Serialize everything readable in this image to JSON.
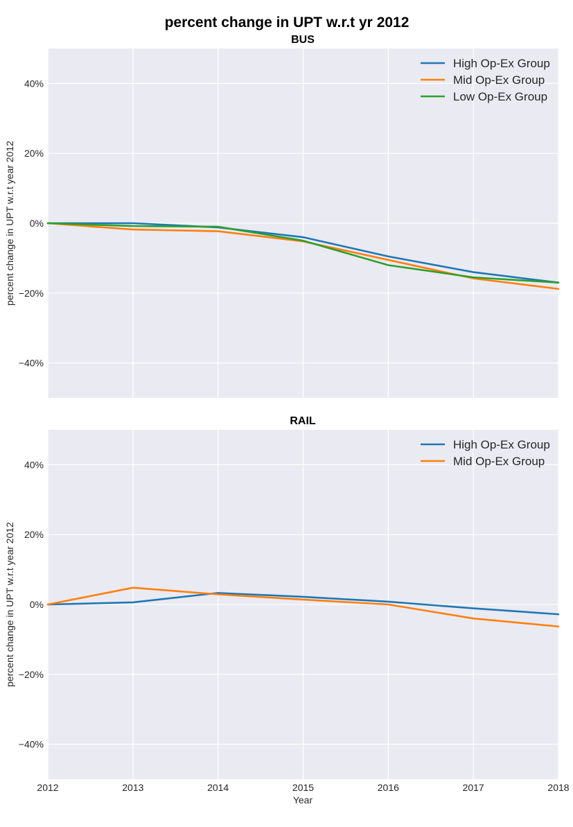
{
  "suptitle": "percent change in UPT w.r.t yr 2012",
  "chart_data": [
    {
      "type": "line",
      "title": "BUS",
      "xlabel": "",
      "ylabel": "percent change in UPT w.r.t year 2012",
      "x": [
        2012,
        2013,
        2014,
        2015,
        2016,
        2017,
        2018
      ],
      "x_tick_labels": [
        "2012",
        "2013",
        "2014",
        "2015",
        "2016",
        "2017",
        "2018"
      ],
      "y_ticks": [
        40,
        20,
        0,
        -20,
        -40
      ],
      "y_tick_labels": [
        "40%",
        "20%",
        "0%",
        "−20%",
        "−40%"
      ],
      "ylim": [
        -50,
        50
      ],
      "grid": true,
      "legend_position": "top-right",
      "series": [
        {
          "name": "High Op-Ex Group",
          "color": "#1f77b4",
          "values": [
            0,
            0,
            -1.2,
            -4,
            -9.5,
            -14,
            -17
          ]
        },
        {
          "name": "Mid Op-Ex Group",
          "color": "#ff7f0e",
          "values": [
            0,
            -1.8,
            -2.3,
            -5.2,
            -10.5,
            -15.8,
            -18.8
          ]
        },
        {
          "name": "Low Op-Ex Group",
          "color": "#2ca02c",
          "values": [
            0,
            -0.8,
            -1,
            -5,
            -12,
            -15.5,
            -17
          ]
        }
      ]
    },
    {
      "type": "line",
      "title": "RAIL",
      "xlabel": "Year",
      "ylabel": "percent change in UPT w.r.t year 2012",
      "x": [
        2012,
        2013,
        2014,
        2015,
        2016,
        2017,
        2018
      ],
      "x_tick_labels": [
        "2012",
        "2013",
        "2014",
        "2015",
        "2016",
        "2017",
        "2018"
      ],
      "y_ticks": [
        40,
        20,
        0,
        -20,
        -40
      ],
      "y_tick_labels": [
        "40%",
        "20%",
        "0%",
        "−20%",
        "−40%"
      ],
      "ylim": [
        -50,
        50
      ],
      "grid": true,
      "legend_position": "top-right",
      "series": [
        {
          "name": "High Op-Ex Group",
          "color": "#1f77b4",
          "values": [
            0,
            0.6,
            3.3,
            2.2,
            0.8,
            -1.1,
            -2.8
          ]
        },
        {
          "name": "Mid Op-Ex Group",
          "color": "#ff7f0e",
          "values": [
            0,
            4.8,
            2.9,
            1.4,
            0,
            -4,
            -6.3
          ]
        }
      ]
    }
  ]
}
